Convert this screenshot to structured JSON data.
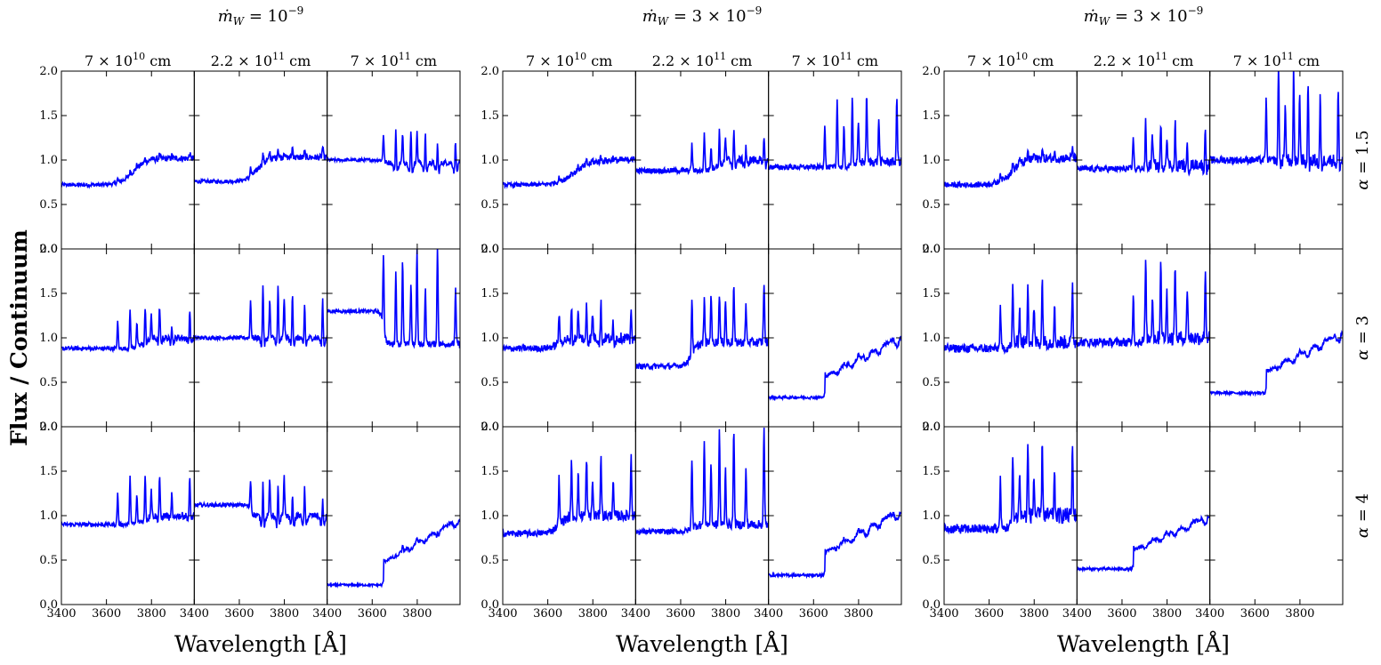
{
  "chart_data": {
    "type": "line",
    "figure": {
      "ylabel": "Flux / Continuum",
      "xlabel": "Wavelength [Å]",
      "xlim": [
        3400,
        3990
      ],
      "ylim": [
        0,
        2
      ],
      "xticks": [
        3400,
        3600,
        3800
      ],
      "yticks": [
        0.0,
        0.5,
        1.0,
        1.5,
        2.0
      ],
      "line_color": "#0000ff",
      "axis_color": "#000000",
      "grid": false,
      "line_markers": [
        3650,
        3705,
        3735,
        3772,
        3799,
        3836,
        3890,
        3970
      ],
      "rows": [
        {
          "label": "α = 1.5",
          "label_sub": "α",
          "label_val": "= 1.5"
        },
        {
          "label": "α = 3",
          "label_sub": "α",
          "label_val": "= 3"
        },
        {
          "label": "α = 4",
          "label_sub": "α",
          "label_val": "= 4"
        }
      ],
      "groups": [
        {
          "title": "ṁW = 10^-9",
          "title_main": "ṁ",
          "title_sub": "W",
          "title_eq": " = 10",
          "title_sup": "−9",
          "columns": [
            {
              "title": "7 × 10^10 cm",
              "base": "7 × 10",
              "exp": "10",
              "unit": " cm"
            },
            {
              "title": "2.2 × 10^11 cm",
              "base": "2.2 × 10",
              "exp": "11",
              "unit": " cm"
            },
            {
              "title": "7 × 10^11 cm",
              "base": "7 × 10",
              "exp": "11",
              "unit": " cm"
            }
          ],
          "panels": [
            [
              {
                "show": true,
                "pre": 0.72,
                "post": 1.02,
                "edge": 3720,
                "width": 120,
                "noise": 0.035,
                "em": 0.05
              },
              {
                "show": true,
                "pre": 0.76,
                "post": 1.03,
                "edge": 3680,
                "width": 90,
                "noise": 0.035,
                "em": 0.12
              },
              {
                "show": true,
                "pre": 1.0,
                "post": 0.97,
                "edge": 3650,
                "width": 20,
                "noise": 0.03,
                "em": 0.55,
                "dip": 0.18
              }
            ],
            [
              {
                "show": true,
                "pre": 0.88,
                "post": 1.0,
                "edge": 3760,
                "width": 60,
                "noise": 0.04,
                "em": 0.45,
                "dip": 0.1
              },
              {
                "show": true,
                "pre": 1.0,
                "post": 1.0,
                "edge": 3650,
                "width": 30,
                "noise": 0.035,
                "em": 0.75,
                "dip": 0.15
              },
              {
                "show": true,
                "pre": 1.3,
                "post": 0.93,
                "edge": 3650,
                "width": 25,
                "noise": 0.035,
                "em": 1.1
              }
            ],
            [
              {
                "show": true,
                "pre": 0.9,
                "post": 1.0,
                "edge": 3760,
                "width": 60,
                "noise": 0.04,
                "em": 0.55,
                "dip": 0.08
              },
              {
                "show": true,
                "pre": 1.12,
                "post": 1.0,
                "edge": 3650,
                "width": 25,
                "noise": 0.035,
                "em": 0.6,
                "dip": 0.2
              },
              {
                "show": true,
                "pre": 0.22,
                "post": 0.95,
                "edge": 3650,
                "width": 320,
                "noise": 0.02,
                "em": 0.12,
                "dip": 0.1,
                "step": true
              }
            ]
          ]
        },
        {
          "title": "ṁW = 3 × 10^-9",
          "title_main": "ṁ",
          "title_sub": "W",
          "title_eq": " = 3 × 10",
          "title_sup": "−9",
          "columns": [
            {
              "title": "7 × 10^10 cm",
              "base": "7 × 10",
              "exp": "10",
              "unit": " cm"
            },
            {
              "title": "2.2 × 10^11 cm",
              "base": "2.2 × 10",
              "exp": "11",
              "unit": " cm"
            },
            {
              "title": "7 × 10^11 cm",
              "base": "7 × 10",
              "exp": "11",
              "unit": " cm"
            }
          ],
          "panels": [
            [
              {
                "show": true,
                "pre": 0.72,
                "post": 1.0,
                "edge": 3720,
                "width": 150,
                "noise": 0.04,
                "em": 0.05
              },
              {
                "show": true,
                "pre": 0.88,
                "post": 1.0,
                "edge": 3760,
                "width": 60,
                "noise": 0.05,
                "em": 0.45,
                "dip": 0.12
              },
              {
                "show": true,
                "pre": 0.92,
                "post": 0.98,
                "edge": 3780,
                "width": 40,
                "noise": 0.05,
                "em": 0.8
              }
            ],
            [
              {
                "show": true,
                "pre": 0.88,
                "post": 1.0,
                "edge": 3650,
                "width": 80,
                "noise": 0.06,
                "em": 0.5,
                "dip": 0.1
              },
              {
                "show": true,
                "pre": 0.68,
                "post": 0.95,
                "edge": 3650,
                "width": 60,
                "noise": 0.05,
                "em": 0.7
              },
              {
                "show": true,
                "pre": 0.33,
                "post": 1.0,
                "edge": 3650,
                "width": 320,
                "noise": 0.025,
                "em": 0.1,
                "dip": 0.12,
                "step": true
              }
            ],
            [
              {
                "show": true,
                "pre": 0.8,
                "post": 1.0,
                "edge": 3650,
                "width": 80,
                "noise": 0.06,
                "em": 0.7
              },
              {
                "show": true,
                "pre": 0.82,
                "post": 0.9,
                "edge": 3650,
                "width": 50,
                "noise": 0.05,
                "em": 1.1
              },
              {
                "show": true,
                "pre": 0.33,
                "post": 1.05,
                "edge": 3650,
                "width": 320,
                "noise": 0.025,
                "em": 0.1,
                "dip": 0.12,
                "step": true
              }
            ]
          ]
        },
        {
          "title": "ṁW = 3 × 10^-9",
          "title_main": "ṁ",
          "title_sub": "W",
          "title_eq": " = 3 × 10",
          "title_sup": "−9",
          "columns": [
            {
              "title": "7 × 10^10 cm",
              "base": "7 × 10",
              "exp": "10",
              "unit": " cm"
            },
            {
              "title": "2.2 × 10^11 cm",
              "base": "2.2 × 10",
              "exp": "11",
              "unit": " cm"
            },
            {
              "title": "7 × 10^11 cm",
              "base": "7 × 10",
              "exp": "11",
              "unit": " cm"
            }
          ],
          "panels": [
            [
              {
                "show": true,
                "pre": 0.72,
                "post": 1.02,
                "edge": 3700,
                "width": 120,
                "noise": 0.05,
                "em": 0.1
              },
              {
                "show": true,
                "pre": 0.9,
                "post": 0.95,
                "edge": 3700,
                "width": 40,
                "noise": 0.06,
                "em": 0.6,
                "dip": 0.12
              },
              {
                "show": true,
                "pre": 1.0,
                "post": 1.0,
                "edge": 3700,
                "width": 30,
                "noise": 0.07,
                "em": 1.2,
                "dip": 0.15
              }
            ],
            [
              {
                "show": true,
                "pre": 0.88,
                "post": 0.95,
                "edge": 3700,
                "width": 40,
                "noise": 0.08,
                "em": 0.7
              },
              {
                "show": true,
                "pre": 0.95,
                "post": 1.0,
                "edge": 3700,
                "width": 40,
                "noise": 0.08,
                "em": 0.9
              },
              {
                "show": true,
                "pre": 0.38,
                "post": 1.05,
                "edge": 3650,
                "width": 320,
                "noise": 0.025,
                "em": 0.1,
                "dip": 0.12,
                "step": true
              }
            ],
            [
              {
                "show": true,
                "pre": 0.85,
                "post": 1.0,
                "edge": 3700,
                "width": 40,
                "noise": 0.09,
                "em": 0.8
              },
              {
                "show": true,
                "pre": 0.4,
                "post": 1.0,
                "edge": 3650,
                "width": 330,
                "noise": 0.025,
                "em": 0.08,
                "dip": 0.1,
                "step": true
              },
              {
                "show": false
              }
            ]
          ]
        }
      ]
    }
  }
}
